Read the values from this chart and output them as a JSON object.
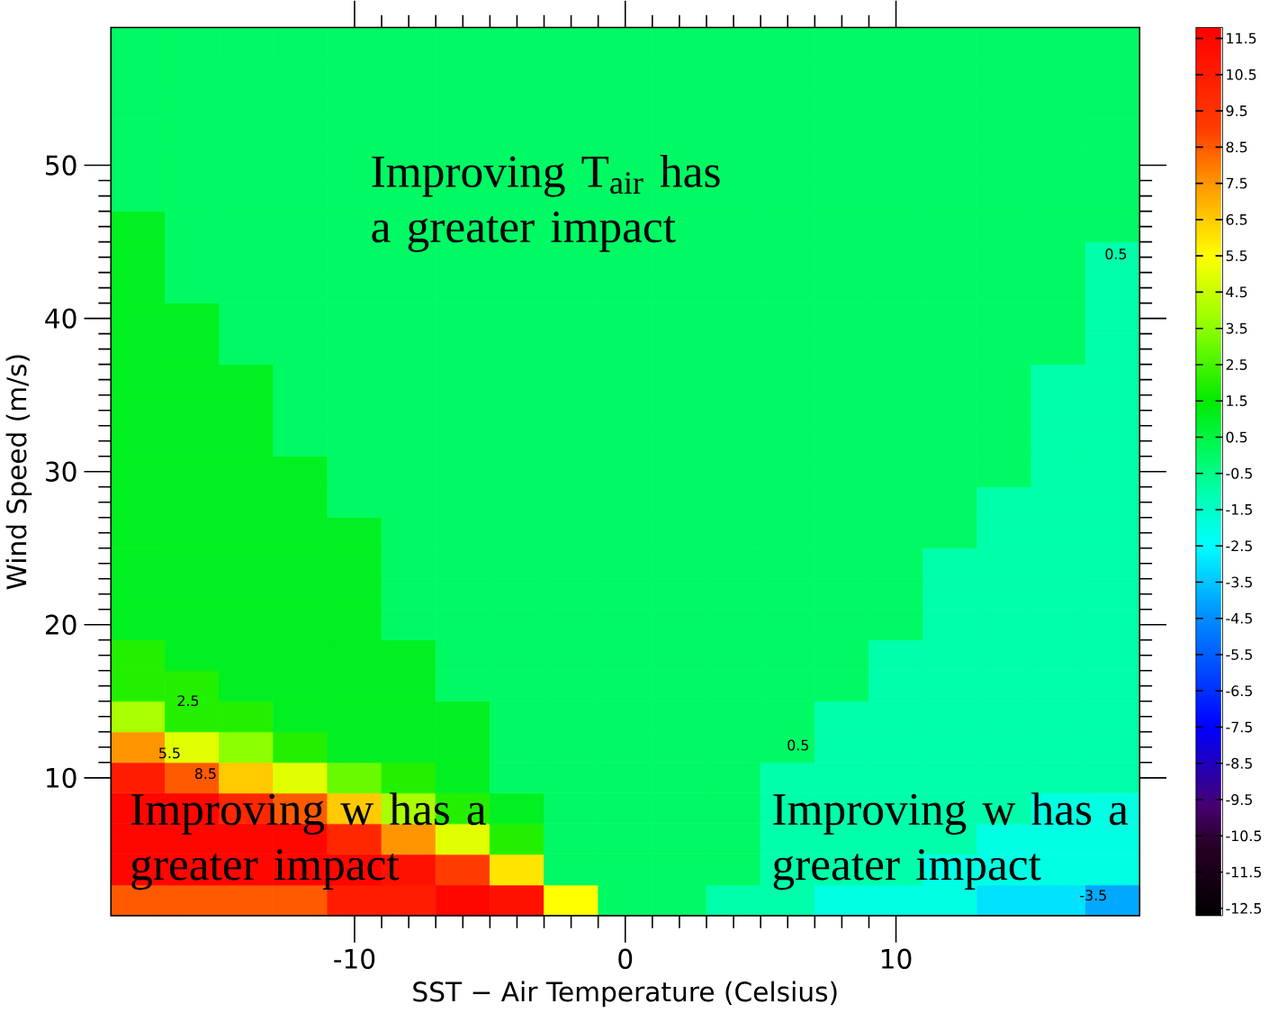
{
  "chart_data": {
    "type": "heatmap",
    "xlabel": "SST − Air Temperature (Celsius)",
    "ylabel": "Wind Speed (m/s)",
    "categories": [
      null,
      null,
      null,
      null,
      "-10",
      null,
      null,
      null,
      null,
      "0",
      null,
      null,
      null,
      null,
      "10",
      null,
      null,
      null,
      null
    ],
    "y_categories": [
      null,
      null,
      null,
      null,
      "50",
      null,
      null,
      null,
      null,
      "40",
      null,
      null,
      null,
      null,
      "30",
      null,
      null,
      null,
      null,
      "20",
      null,
      null,
      null,
      null,
      "10",
      null,
      null,
      null,
      null
    ],
    "cells": [
      [
        0,
        0,
        0,
        0,
        0,
        0,
        0,
        0,
        0,
        0,
        0,
        0,
        0,
        0,
        0,
        0,
        0,
        0,
        0
      ],
      [
        0,
        0,
        0,
        0,
        0,
        0,
        0,
        0,
        0,
        0,
        0,
        0,
        0,
        0,
        0,
        0,
        0,
        0,
        0
      ],
      [
        0,
        0,
        0,
        0,
        0,
        0,
        0,
        0,
        0,
        0,
        0,
        0,
        0,
        0,
        0,
        0,
        0,
        0,
        0
      ],
      [
        0,
        0,
        0,
        0,
        0,
        0,
        0,
        0,
        0,
        0,
        0,
        0,
        0,
        0,
        0,
        0,
        0,
        0,
        0
      ],
      [
        0,
        0,
        0,
        0,
        0,
        0,
        0,
        0,
        0,
        0,
        0,
        0,
        0,
        0,
        0,
        0,
        0,
        0,
        0
      ],
      [
        0,
        0,
        0,
        0,
        0,
        0,
        0,
        0,
        0,
        0,
        0,
        0,
        0,
        0,
        0,
        0,
        0,
        0,
        0
      ],
      [
        1,
        0,
        0,
        0,
        0,
        0,
        0,
        0,
        0,
        0,
        0,
        0,
        0,
        0,
        0,
        0,
        0,
        0,
        0
      ],
      [
        1,
        0,
        0,
        0,
        0,
        0,
        0,
        0,
        0,
        0,
        0,
        0,
        0,
        0,
        0,
        0,
        0,
        0,
        -1
      ],
      [
        1,
        0,
        0,
        0,
        0,
        0,
        0,
        0,
        0,
        0,
        0,
        0,
        0,
        0,
        0,
        0,
        0,
        0,
        -1
      ],
      [
        1,
        1,
        0,
        0,
        0,
        0,
        0,
        0,
        0,
        0,
        0,
        0,
        0,
        0,
        0,
        0,
        0,
        0,
        -1
      ],
      [
        1,
        1,
        0,
        0,
        0,
        0,
        0,
        0,
        0,
        0,
        0,
        0,
        0,
        0,
        0,
        0,
        0,
        0,
        -1
      ],
      [
        1,
        1,
        1,
        0,
        0,
        0,
        0,
        0,
        0,
        0,
        0,
        0,
        0,
        0,
        0,
        0,
        0,
        -1,
        -1
      ],
      [
        1,
        1,
        1,
        0,
        0,
        0,
        0,
        0,
        0,
        0,
        0,
        0,
        0,
        0,
        0,
        0,
        0,
        -1,
        -1
      ],
      [
        1,
        1,
        1,
        0,
        0,
        0,
        0,
        0,
        0,
        0,
        0,
        0,
        0,
        0,
        0,
        0,
        0,
        -1,
        -1
      ],
      [
        1,
        1,
        1,
        1,
        0,
        0,
        0,
        0,
        0,
        0,
        0,
        0,
        0,
        0,
        0,
        0,
        0,
        -1,
        -1
      ],
      [
        1,
        1,
        1,
        1,
        0,
        0,
        0,
        0,
        0,
        0,
        0,
        0,
        0,
        0,
        0,
        0,
        -1,
        -1,
        -1
      ],
      [
        1,
        1,
        1,
        1,
        1,
        0,
        0,
        0,
        0,
        0,
        0,
        0,
        0,
        0,
        0,
        0,
        -1,
        -1,
        -1
      ],
      [
        1,
        1,
        1,
        1,
        1,
        0,
        0,
        0,
        0,
        0,
        0,
        0,
        0,
        0,
        0,
        -1,
        -1,
        -1,
        -1
      ],
      [
        1,
        1,
        1,
        1,
        1,
        0,
        0,
        0,
        0,
        0,
        0,
        0,
        0,
        0,
        0,
        -1,
        -1,
        -1,
        -1
      ],
      [
        1,
        1,
        1,
        1,
        1,
        0,
        0,
        0,
        0,
        0,
        0,
        0,
        0,
        0,
        0,
        -1,
        -1,
        -1,
        -1
      ],
      [
        2,
        1,
        1,
        1,
        1,
        1,
        0,
        0,
        0,
        0,
        0,
        0,
        0,
        0,
        -1,
        -1,
        -1,
        -1,
        -1
      ],
      [
        2,
        2,
        1,
        1,
        1,
        1,
        0,
        0,
        0,
        0,
        0,
        0,
        0,
        0,
        -1,
        -1,
        -1,
        -1,
        -1
      ],
      [
        4,
        2,
        2,
        1,
        1,
        1,
        1,
        0,
        0,
        0,
        0,
        0,
        0,
        -1,
        -1,
        -1,
        -1,
        -1,
        -1
      ],
      [
        7.5,
        5,
        3.5,
        2,
        1,
        1,
        1,
        0,
        0,
        0,
        0,
        0,
        0,
        -1,
        -1,
        -1,
        -1,
        -1,
        -1
      ],
      [
        10.5,
        8.5,
        6.5,
        5,
        3,
        2,
        1,
        0,
        0,
        0,
        0,
        0,
        -1,
        -1,
        -1,
        -1,
        -1,
        -1,
        -1
      ],
      [
        11.5,
        11.5,
        10,
        8.5,
        6.5,
        4,
        2,
        1,
        0,
        0,
        0,
        0,
        -1,
        -1,
        -1,
        -1,
        -1,
        -2,
        -2
      ],
      [
        11.5,
        11.5,
        11.5,
        11.5,
        10,
        7.5,
        5,
        2,
        0,
        0,
        0,
        0,
        -1,
        -1,
        -1,
        -1,
        -2,
        -2,
        -2
      ],
      [
        11.5,
        11.5,
        11.5,
        11.5,
        11.5,
        11,
        9,
        6,
        0,
        0,
        0,
        0,
        -1,
        -1,
        -1,
        -2,
        -2,
        -2,
        -2
      ],
      [
        8.5,
        8.5,
        8.5,
        8.5,
        10.5,
        10.5,
        11.5,
        11,
        5.5,
        0,
        0,
        -1,
        -1,
        -2,
        -2,
        -2,
        -3,
        -3,
        -4
      ]
    ],
    "clim": [
      -12.7,
      11.8
    ],
    "cticks": [
      -12.5,
      -11.5,
      -10.5,
      -9.5,
      -8.5,
      -7.5,
      -6.5,
      -5.5,
      -4.5,
      -3.5,
      -2.5,
      -1.5,
      -0.5,
      0.5,
      1.5,
      2.5,
      3.5,
      4.5,
      5.5,
      6.5,
      7.5,
      8.5,
      9.5,
      10.5,
      11.5
    ],
    "annotations": [
      "Improving T$_{air}$ has a greater impact",
      "Improving w has a greater impact",
      "Improving w has a greater impact",
      "2.5",
      "5.5",
      "8.5",
      "0.5",
      "0.5",
      "-3.5"
    ]
  }
}
